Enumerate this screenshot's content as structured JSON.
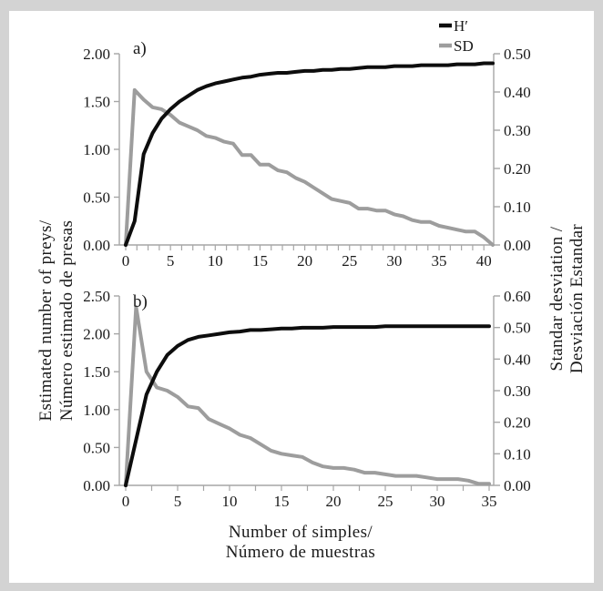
{
  "colors": {
    "h_line": "#0d0d0d",
    "sd_line": "#9d9d9d",
    "axis": "#a6a6a6",
    "text": "#1a1a1a",
    "frame": "#d3d3d3",
    "panel": "#ffffff"
  },
  "legend": {
    "items": [
      {
        "label": "H′",
        "series": "h-prime"
      },
      {
        "label": "SD",
        "series": "sd"
      }
    ]
  },
  "axis_titles": {
    "left": [
      "Estimated number of preys/",
      "Número estimado de presas"
    ],
    "right": [
      "Standar desviation /",
      "Desviación Estandar"
    ],
    "bottom": [
      "Number of simples/",
      "Número de muestras"
    ]
  },
  "chart_data": [
    {
      "type": "line",
      "panel_label": "a)",
      "title": "a)",
      "xlabel": "Number of simples/ Número de muestras",
      "ylabel_left": "Estimated number of preys/ Número estimado de presas",
      "ylabel_right": "Standar desviation / Desviación Estandar",
      "x_start": 0,
      "x_step": 1,
      "x_ticks": [
        0,
        5,
        10,
        15,
        20,
        25,
        30,
        35,
        40
      ],
      "x_minor_tick_step": 1.25,
      "left_axis": {
        "min": 0,
        "max": 2.0,
        "tick_step": 0.5
      },
      "right_axis": {
        "min": 0,
        "max": 0.5,
        "tick_step": 0.1
      },
      "grid": false,
      "legend_position": "top-right",
      "series": [
        {
          "name": "H′",
          "axis": "left",
          "color": "#0d0d0d",
          "values": [
            0.0,
            0.25,
            0.95,
            1.17,
            1.32,
            1.42,
            1.5,
            1.56,
            1.62,
            1.66,
            1.69,
            1.71,
            1.73,
            1.75,
            1.76,
            1.78,
            1.79,
            1.8,
            1.8,
            1.81,
            1.82,
            1.82,
            1.83,
            1.83,
            1.84,
            1.84,
            1.85,
            1.86,
            1.86,
            1.86,
            1.87,
            1.87,
            1.87,
            1.88,
            1.88,
            1.88,
            1.88,
            1.89,
            1.89,
            1.89,
            1.9,
            1.9
          ]
        },
        {
          "name": "SD",
          "axis": "right",
          "color": "#9d9d9d",
          "values": [
            0.0,
            0.405,
            0.38,
            0.36,
            0.355,
            0.34,
            0.32,
            0.31,
            0.3,
            0.285,
            0.28,
            0.27,
            0.265,
            0.235,
            0.235,
            0.21,
            0.21,
            0.195,
            0.19,
            0.175,
            0.165,
            0.15,
            0.135,
            0.12,
            0.115,
            0.11,
            0.095,
            0.095,
            0.09,
            0.09,
            0.08,
            0.075,
            0.065,
            0.06,
            0.06,
            0.05,
            0.045,
            0.04,
            0.035,
            0.035,
            0.02,
            0.0
          ]
        }
      ]
    },
    {
      "type": "line",
      "panel_label": "b)",
      "title": "b)",
      "xlabel": "Number of simples/ Número de muestras",
      "ylabel_left": "Estimated number of preys/ Número estimado de presas",
      "ylabel_right": "Standar desviation / Desviación Estandar",
      "x_start": 0,
      "x_step": 1,
      "x_ticks": [
        0,
        5,
        10,
        15,
        20,
        25,
        30,
        35
      ],
      "x_minor_tick_step": 2.5,
      "left_axis": {
        "min": 0,
        "max": 2.5,
        "tick_step": 0.5
      },
      "right_axis": {
        "min": 0,
        "max": 0.6,
        "tick_step": 0.1
      },
      "grid": false,
      "legend_position": "none",
      "series": [
        {
          "name": "H′",
          "axis": "left",
          "color": "#0d0d0d",
          "values": [
            0.0,
            0.6,
            1.2,
            1.5,
            1.72,
            1.84,
            1.92,
            1.96,
            1.98,
            2.0,
            2.02,
            2.03,
            2.05,
            2.05,
            2.06,
            2.07,
            2.07,
            2.08,
            2.08,
            2.08,
            2.09,
            2.09,
            2.09,
            2.09,
            2.09,
            2.1,
            2.1,
            2.1,
            2.1,
            2.1,
            2.1,
            2.1,
            2.1,
            2.1,
            2.1,
            2.1
          ]
        },
        {
          "name": "SD",
          "axis": "right",
          "color": "#9d9d9d",
          "values": [
            0.0,
            0.565,
            0.36,
            0.31,
            0.3,
            0.28,
            0.25,
            0.245,
            0.21,
            0.195,
            0.18,
            0.16,
            0.15,
            0.13,
            0.11,
            0.1,
            0.095,
            0.09,
            0.072,
            0.06,
            0.055,
            0.055,
            0.05,
            0.04,
            0.04,
            0.035,
            0.03,
            0.03,
            0.03,
            0.025,
            0.02,
            0.02,
            0.02,
            0.015,
            0.005,
            0.005
          ]
        }
      ]
    }
  ]
}
